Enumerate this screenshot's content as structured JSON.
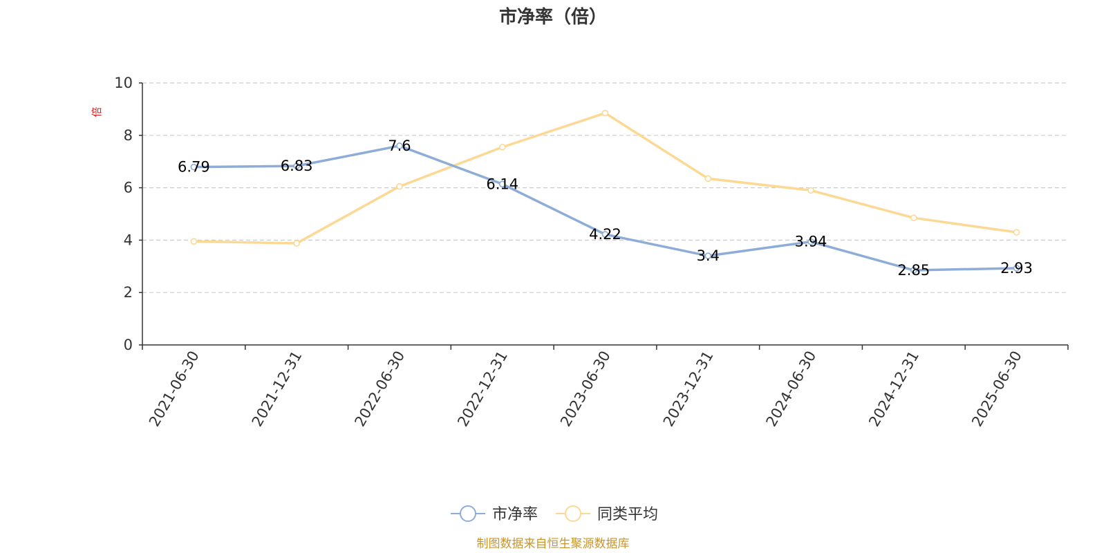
{
  "chart_data": {
    "type": "line",
    "title": "市净率（倍）",
    "unit_label": "倍",
    "categories": [
      "2021-06-30",
      "2021-12-31",
      "2022-06-30",
      "2022-12-31",
      "2023-06-30",
      "2023-12-31",
      "2024-06-30",
      "2024-12-31",
      "2025-06-30"
    ],
    "series": [
      {
        "name": "市净率",
        "color": "#8eacd8",
        "values": [
          6.79,
          6.83,
          7.6,
          6.14,
          4.22,
          3.4,
          3.94,
          2.85,
          2.93
        ],
        "labels": [
          "6.79",
          "6.83",
          "7.6",
          "6.14",
          "4.22",
          "3.4",
          "3.94",
          "2.85",
          "2.93"
        ]
      },
      {
        "name": "同类平均",
        "color": "#fbd994",
        "values": [
          3.95,
          3.88,
          6.05,
          7.55,
          8.85,
          6.35,
          5.9,
          4.85,
          4.3
        ]
      }
    ],
    "yticks": [
      "0",
      "2",
      "4",
      "6",
      "8",
      "10"
    ],
    "ylim": [
      0,
      10
    ],
    "grid": true,
    "legend_position": "bottom-center"
  },
  "source": "制图数据来自恒生聚源数据库",
  "colors": {
    "axis": "#333333",
    "grid": "#cccccc",
    "unit": "#e02020",
    "source": "#c8952c"
  }
}
